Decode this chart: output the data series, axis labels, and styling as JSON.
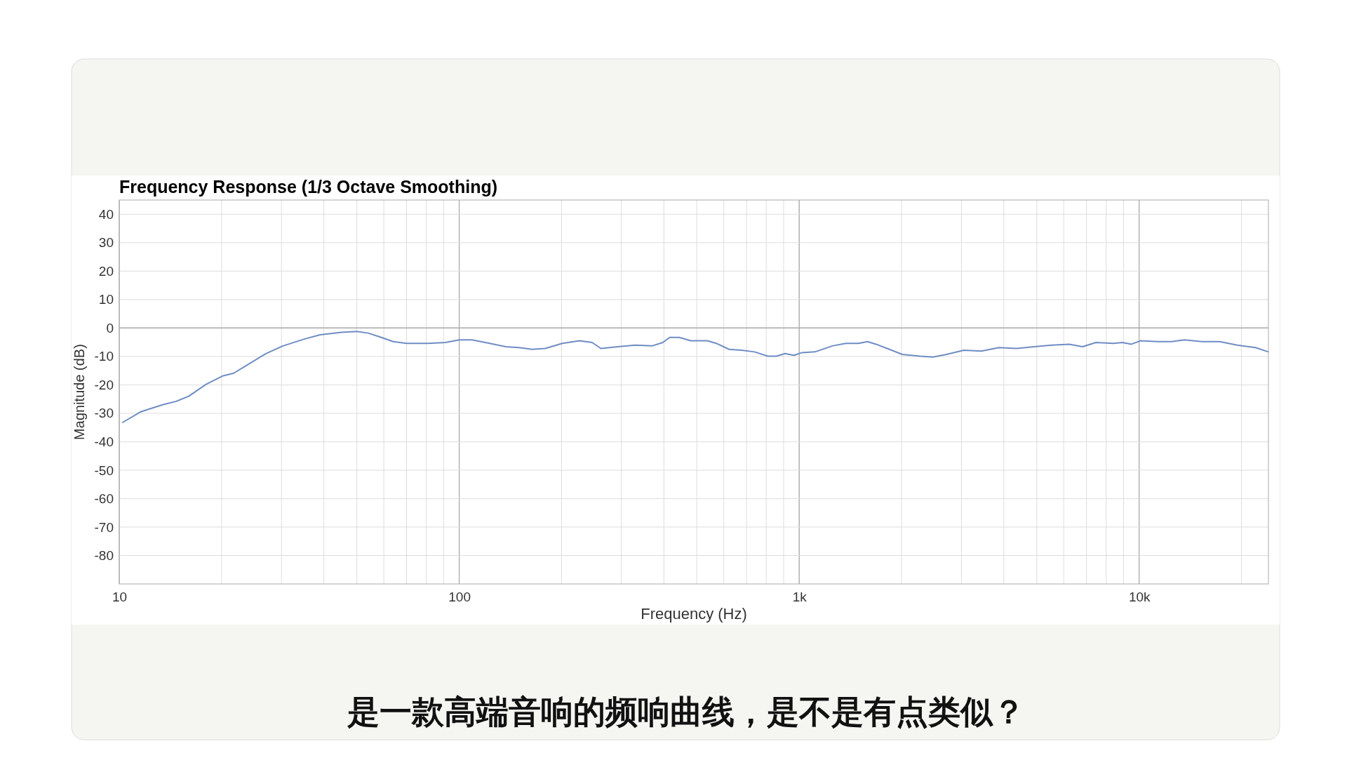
{
  "chart_data": {
    "type": "line",
    "title": "Frequency Response (1/3 Octave Smoothing)",
    "xlabel": "Frequency (Hz)",
    "ylabel": "Magnitude (dB)",
    "annotations": [
      "是一款高端音响的频响曲线，是不是有点类似？"
    ],
    "log": "x",
    "grid": true,
    "marker": "none",
    "line_style": "solid",
    "xlim": [
      10,
      24000
    ],
    "xticks": [
      10,
      100,
      {
        "value": 1000,
        "label": "1k"
      },
      {
        "value": 10000,
        "label": "10k"
      }
    ],
    "ylim": [
      -90,
      45
    ],
    "yticks": [
      40,
      30,
      20,
      10,
      0,
      -10,
      -20,
      -30,
      -40,
      -50,
      -60,
      -70,
      -80
    ],
    "ref_lines": [
      {
        "axis": "y",
        "value": 0,
        "label": null,
        "color": "#aaaaaa"
      }
    ],
    "series": [
      {
        "color": "#6f8dc4",
        "x": [
          10.2,
          11.6,
          13.4,
          14.7,
          16,
          18,
          20.2,
          21.7,
          23.4,
          27,
          30.3,
          35,
          39,
          45,
          50,
          54,
          59,
          64,
          70,
          81,
          91,
          100,
          109,
          123,
          137,
          150,
          164,
          179,
          201,
          226,
          246,
          261,
          293,
          329,
          369,
          397,
          416,
          444,
          480,
          537,
          570,
          622,
          677,
          739,
          809,
          857,
          909,
          965,
          1016,
          1112,
          1252,
          1370,
          1496,
          1588,
          1683,
          1841,
          2010,
          2265,
          2475,
          2709,
          3051,
          3436,
          3870,
          4360,
          4911,
          5532,
          6231,
          6818,
          7461,
          8404,
          8931,
          9490,
          10085,
          11360,
          12430,
          13600,
          15320,
          17250,
          19440,
          22000,
          24000
        ],
        "values": [
          -33.3,
          -29.4,
          -27,
          -25.8,
          -24,
          -19.8,
          -16.8,
          -15.9,
          -13.5,
          -9,
          -6.3,
          -3.9,
          -2.4,
          -1.5,
          -1.2,
          -1.8,
          -3.3,
          -4.8,
          -5.4,
          -5.4,
          -5.1,
          -4.2,
          -4.2,
          -5.4,
          -6.6,
          -6.9,
          -7.5,
          -7.2,
          -5.4,
          -4.5,
          -5.1,
          -7.2,
          -6.6,
          -6,
          -6.3,
          -5.1,
          -3.3,
          -3.3,
          -4.5,
          -4.5,
          -5.4,
          -7.5,
          -7.8,
          -8.4,
          -9.9,
          -9.9,
          -9,
          -9.6,
          -8.7,
          -8.4,
          -6.3,
          -5.4,
          -5.4,
          -4.8,
          -5.7,
          -7.5,
          -9.3,
          -9.9,
          -10.2,
          -9.3,
          -7.8,
          -8.1,
          -6.9,
          -7.2,
          -6.6,
          -6,
          -5.7,
          -6.6,
          -5.1,
          -5.4,
          -5.1,
          -5.7,
          -4.5,
          -4.8,
          -4.8,
          -4.2,
          -4.8,
          -4.8,
          -6,
          -6.9,
          -8.4
        ]
      }
    ]
  }
}
